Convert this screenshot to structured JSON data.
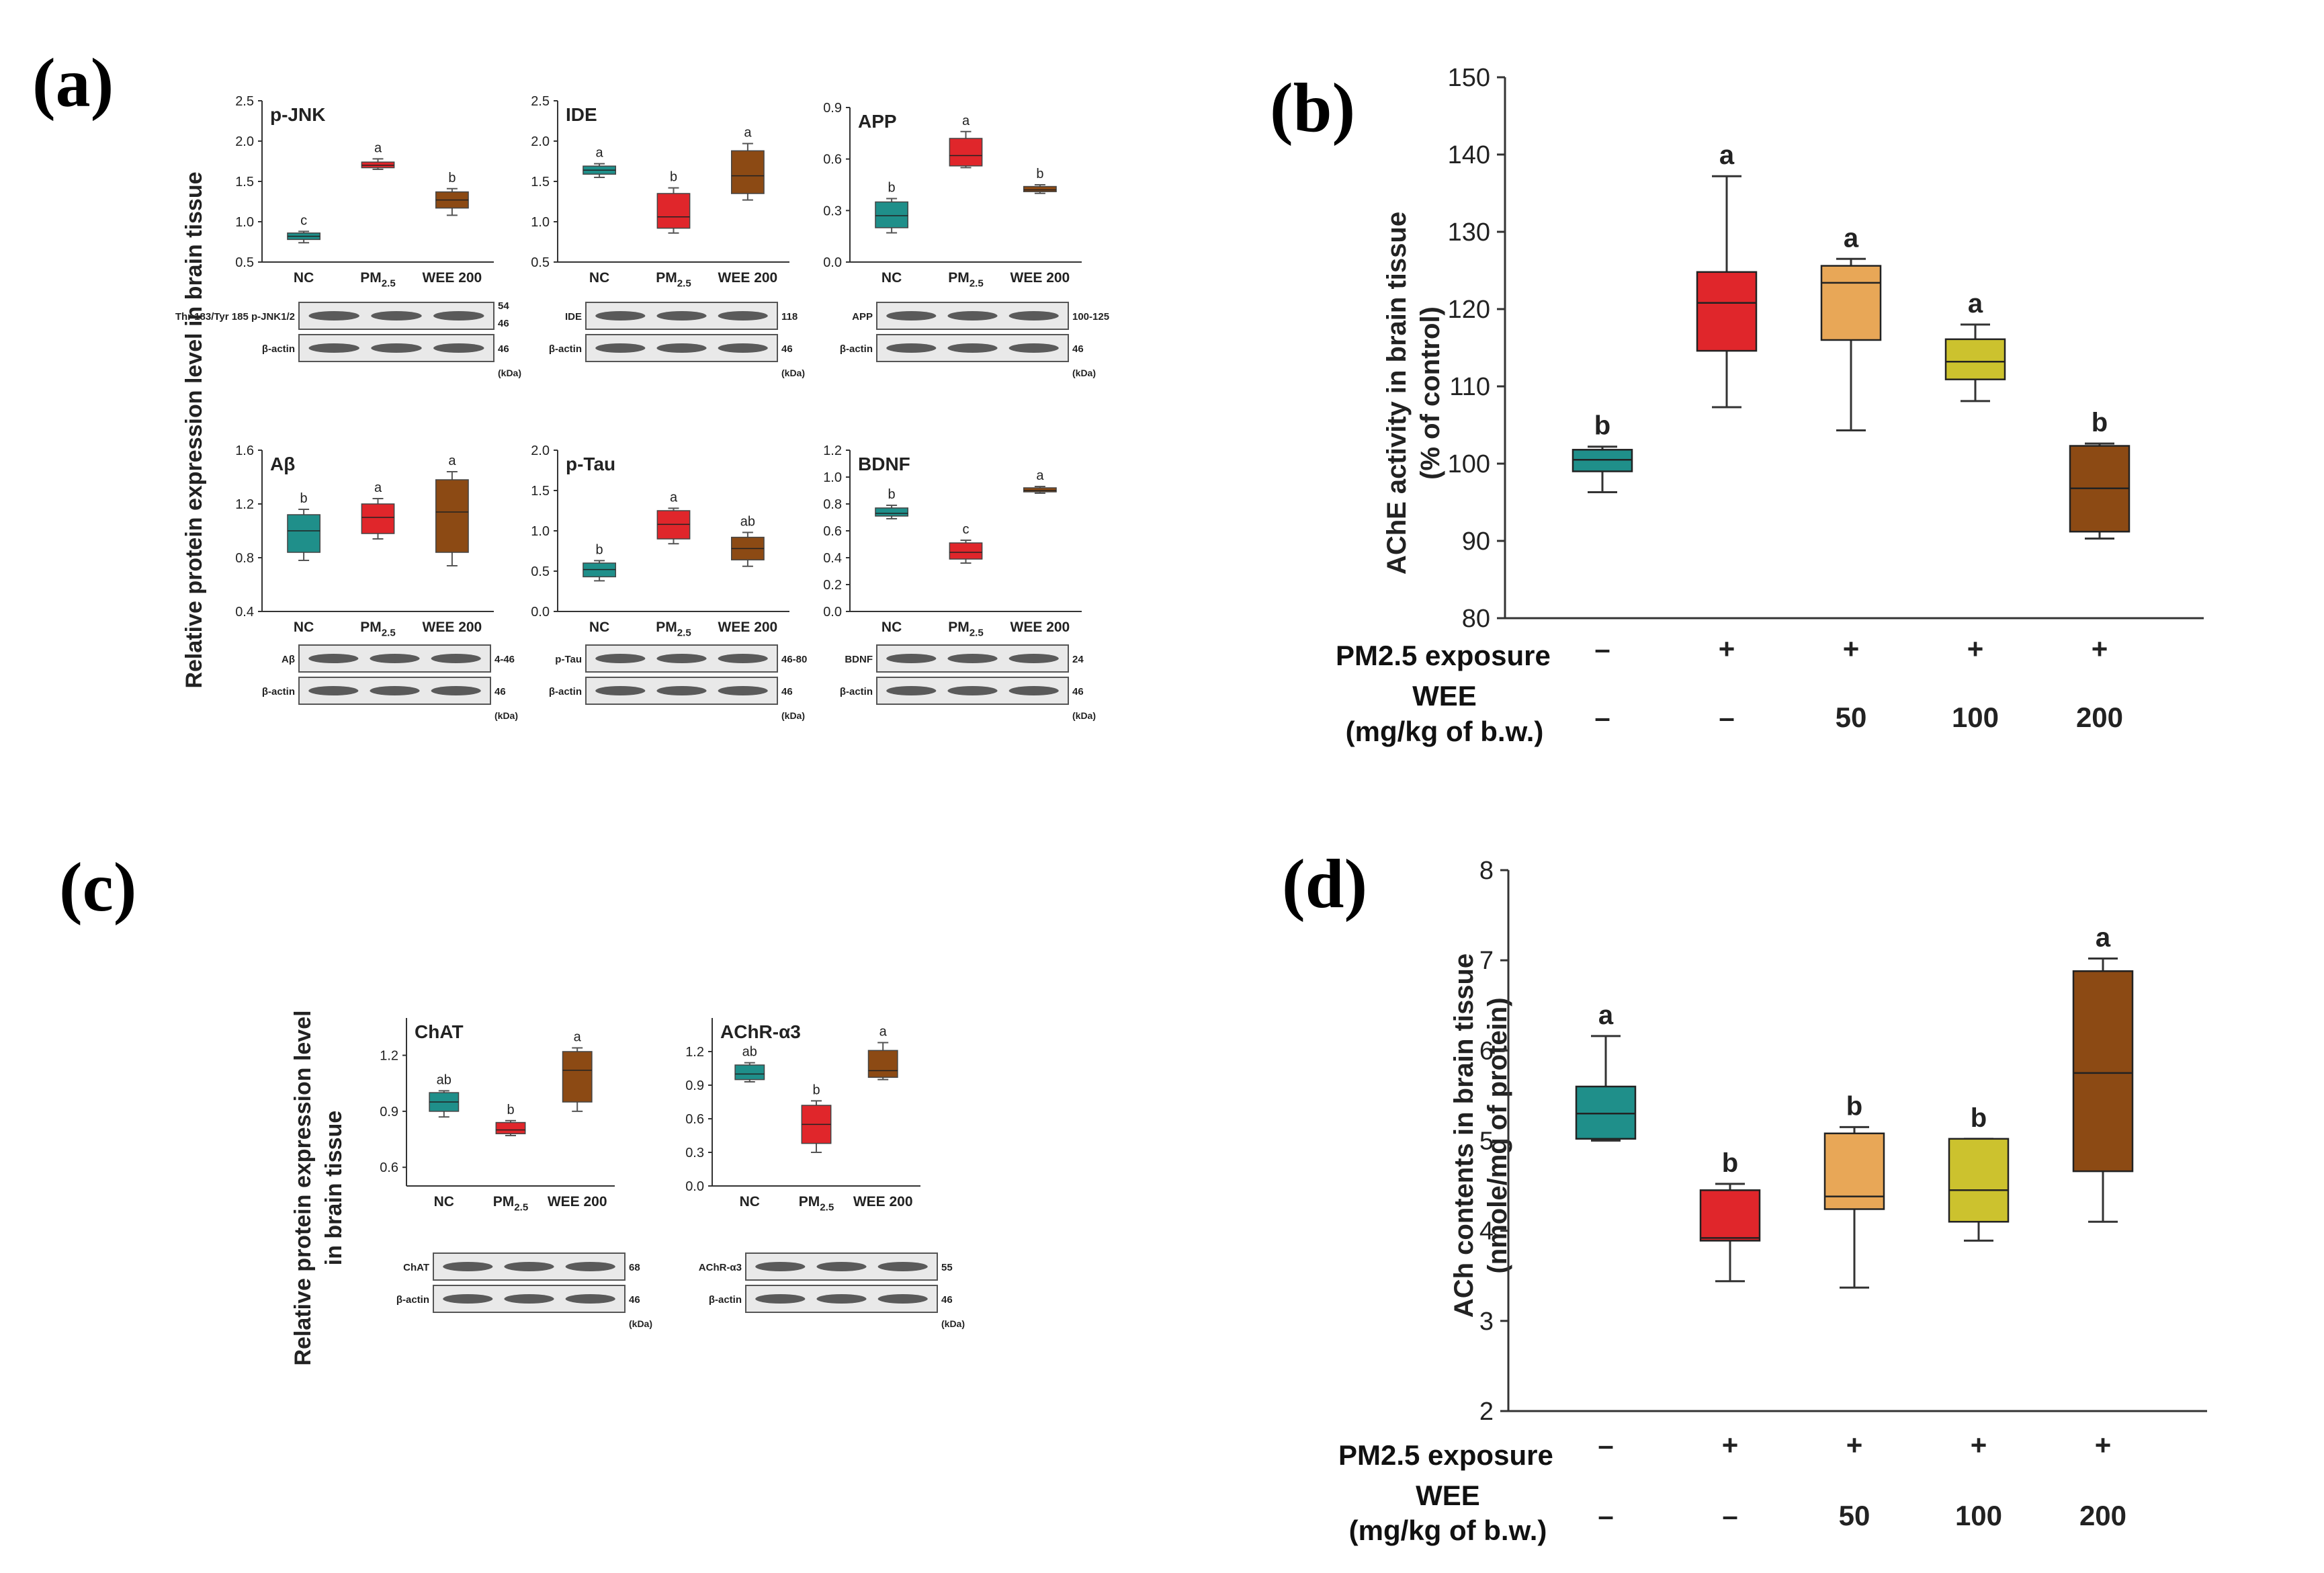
{
  "panel_labels": {
    "a": "(a)",
    "b": "(b)",
    "c": "(c)",
    "d": "(d)"
  },
  "panel_a_ylabel": "Relative protein expression level in brain tissue",
  "panel_c_ylabel_1": "Relative protein expression level",
  "panel_c_ylabel_2": "in brain tissue",
  "group_labels": [
    "NC",
    "PM2.5",
    "WEE 200"
  ],
  "colors": {
    "teal": "#1f8f8a",
    "red": "#e0262b",
    "light_orange": "#e8a757",
    "yellow": "#ccc22e",
    "brown": "#8c4a14",
    "blot_bg": "#e9e9e9",
    "band": "#2a2a2a"
  },
  "chart_data": [
    {
      "type": "boxplot",
      "title": "p-JNK",
      "panel": "a",
      "ylim": [
        0.5,
        2.5
      ],
      "yticks": [
        "0.5",
        "1.0",
        "1.5",
        "2.0",
        "2.5"
      ],
      "categories": [
        "NC",
        "PM2.5",
        "WEE 200"
      ],
      "boxes": [
        {
          "min": 0.74,
          "q1": 0.78,
          "median": 0.82,
          "q3": 0.86,
          "max": 0.88,
          "label": "c",
          "color": "teal"
        },
        {
          "min": 1.65,
          "q1": 1.67,
          "median": 1.7,
          "q3": 1.74,
          "max": 1.78,
          "label": "a",
          "color": "red"
        },
        {
          "min": 1.08,
          "q1": 1.17,
          "median": 1.27,
          "q3": 1.37,
          "max": 1.41,
          "label": "b",
          "color": "brown"
        }
      ],
      "blot": {
        "rows": [
          "Thr 183/Tyr 185 p-JNK1/2",
          "β-actin"
        ],
        "kda": [
          "54",
          "46",
          "46"
        ],
        "unit": "(kDa)"
      }
    },
    {
      "type": "boxplot",
      "title": "IDE",
      "panel": "a",
      "ylim": [
        0.5,
        2.5
      ],
      "yticks": [
        "0.5",
        "1.0",
        "1.5",
        "2.0",
        "2.5"
      ],
      "categories": [
        "NC",
        "PM2.5",
        "WEE 200"
      ],
      "boxes": [
        {
          "min": 1.55,
          "q1": 1.59,
          "median": 1.64,
          "q3": 1.69,
          "max": 1.72,
          "label": "a",
          "color": "teal"
        },
        {
          "min": 0.86,
          "q1": 0.92,
          "median": 1.06,
          "q3": 1.35,
          "max": 1.42,
          "label": "b",
          "color": "red"
        },
        {
          "min": 1.27,
          "q1": 1.35,
          "median": 1.57,
          "q3": 1.88,
          "max": 1.97,
          "label": "a",
          "color": "brown"
        }
      ],
      "blot": {
        "rows": [
          "IDE",
          "β-actin"
        ],
        "kda": [
          "118",
          "46"
        ],
        "unit": "(kDa)"
      }
    },
    {
      "type": "boxplot",
      "title": "APP",
      "panel": "a",
      "ylim": [
        0.0,
        0.9
      ],
      "yticks": [
        "0.0",
        "0.3",
        "0.6",
        "0.9"
      ],
      "categories": [
        "NC",
        "PM2.5",
        "WEE 200"
      ],
      "boxes": [
        {
          "min": 0.17,
          "q1": 0.2,
          "median": 0.27,
          "q3": 0.35,
          "max": 0.37,
          "label": "b",
          "color": "teal"
        },
        {
          "min": 0.55,
          "q1": 0.56,
          "median": 0.62,
          "q3": 0.72,
          "max": 0.76,
          "label": "a",
          "color": "red"
        },
        {
          "min": 0.4,
          "q1": 0.41,
          "median": 0.42,
          "q3": 0.44,
          "max": 0.45,
          "label": "b",
          "color": "brown"
        }
      ],
      "blot": {
        "rows": [
          "APP",
          "β-actin"
        ],
        "kda": [
          "100-125",
          "46"
        ],
        "unit": "(kDa)"
      }
    },
    {
      "type": "boxplot",
      "title": "Aβ",
      "panel": "a",
      "ylim": [
        0.4,
        1.6
      ],
      "yticks": [
        "0.4",
        "0.8",
        "1.2",
        "1.6"
      ],
      "categories": [
        "NC",
        "PM2.5",
        "WEE 200"
      ],
      "boxes": [
        {
          "min": 0.78,
          "q1": 0.84,
          "median": 1.0,
          "q3": 1.12,
          "max": 1.16,
          "label": "b",
          "color": "teal"
        },
        {
          "min": 0.94,
          "q1": 0.98,
          "median": 1.1,
          "q3": 1.2,
          "max": 1.24,
          "label": "a",
          "color": "red"
        },
        {
          "min": 0.74,
          "q1": 0.84,
          "median": 1.14,
          "q3": 1.38,
          "max": 1.44,
          "label": "a",
          "color": "brown"
        }
      ],
      "blot": {
        "rows": [
          "Aβ",
          "β-actin"
        ],
        "kda": [
          "4-46",
          "46"
        ],
        "unit": "(kDa)"
      }
    },
    {
      "type": "boxplot",
      "title": "p-Tau",
      "panel": "a",
      "ylim": [
        0.0,
        2.0
      ],
      "yticks": [
        "0.0",
        "0.5",
        "1.0",
        "1.5",
        "2.0"
      ],
      "categories": [
        "NC",
        "PM2.5",
        "WEE 200"
      ],
      "boxes": [
        {
          "min": 0.38,
          "q1": 0.43,
          "median": 0.52,
          "q3": 0.6,
          "max": 0.63,
          "label": "b",
          "color": "teal"
        },
        {
          "min": 0.84,
          "q1": 0.9,
          "median": 1.08,
          "q3": 1.25,
          "max": 1.28,
          "label": "a",
          "color": "red"
        },
        {
          "min": 0.56,
          "q1": 0.64,
          "median": 0.78,
          "q3": 0.92,
          "max": 0.98,
          "label": "ab",
          "color": "brown"
        }
      ],
      "blot": {
        "rows": [
          "p-Tau",
          "β-actin"
        ],
        "kda": [
          "46-80",
          "46"
        ],
        "unit": "(kDa)"
      }
    },
    {
      "type": "boxplot",
      "title": "BDNF",
      "panel": "a",
      "ylim": [
        0.0,
        1.2
      ],
      "yticks": [
        "0.0",
        "0.2",
        "0.4",
        "0.6",
        "0.8",
        "1.0",
        "1.2"
      ],
      "categories": [
        "NC",
        "PM2.5",
        "WEE 200"
      ],
      "boxes": [
        {
          "min": 0.69,
          "q1": 0.71,
          "median": 0.73,
          "q3": 0.77,
          "max": 0.79,
          "label": "b",
          "color": "teal"
        },
        {
          "min": 0.36,
          "q1": 0.39,
          "median": 0.44,
          "q3": 0.51,
          "max": 0.53,
          "label": "c",
          "color": "red"
        },
        {
          "min": 0.88,
          "q1": 0.89,
          "median": 0.9,
          "q3": 0.92,
          "max": 0.93,
          "label": "a",
          "color": "brown"
        }
      ],
      "blot": {
        "rows": [
          "BDNF",
          "β-actin"
        ],
        "kda": [
          "24",
          "46"
        ],
        "unit": "(kDa)"
      }
    },
    {
      "type": "boxplot",
      "title": "ChAT",
      "panel": "c",
      "ylim": [
        0.5,
        1.4
      ],
      "yticks": [
        "0.6",
        "0.9",
        "1.2"
      ],
      "categories": [
        "NC",
        "PM2.5",
        "WEE 200"
      ],
      "boxes": [
        {
          "min": 0.87,
          "q1": 0.9,
          "median": 0.95,
          "q3": 1.0,
          "max": 1.01,
          "label": "ab",
          "color": "teal"
        },
        {
          "min": 0.77,
          "q1": 0.78,
          "median": 0.8,
          "q3": 0.84,
          "max": 0.85,
          "label": "b",
          "color": "red"
        },
        {
          "min": 0.9,
          "q1": 0.95,
          "median": 1.12,
          "q3": 1.22,
          "max": 1.24,
          "label": "a",
          "color": "brown"
        }
      ],
      "blot": {
        "rows": [
          "ChAT",
          "β-actin"
        ],
        "kda": [
          "68",
          "46"
        ],
        "unit": "(kDa)"
      }
    },
    {
      "type": "boxplot",
      "title": "AChR-α3",
      "panel": "c",
      "ylim": [
        0.0,
        1.5
      ],
      "yticks": [
        "0.0",
        "0.3",
        "0.6",
        "0.9",
        "1.2"
      ],
      "categories": [
        "NC",
        "PM2.5",
        "WEE 200"
      ],
      "boxes": [
        {
          "min": 0.93,
          "q1": 0.95,
          "median": 1.0,
          "q3": 1.08,
          "max": 1.1,
          "label": "ab",
          "color": "teal"
        },
        {
          "min": 0.3,
          "q1": 0.38,
          "median": 0.55,
          "q3": 0.72,
          "max": 0.76,
          "label": "b",
          "color": "red"
        },
        {
          "min": 0.95,
          "q1": 0.97,
          "median": 1.03,
          "q3": 1.21,
          "max": 1.28,
          "label": "a",
          "color": "brown"
        }
      ],
      "blot": {
        "rows": [
          "AChR-α3",
          "β-actin"
        ],
        "kda": [
          "55",
          "46"
        ],
        "unit": "(kDa)"
      }
    },
    {
      "type": "boxplot",
      "panel": "b",
      "ylabel_1": "AChE activity in brain tissue",
      "ylabel_2": "(% of control)",
      "ylim": [
        80,
        150
      ],
      "yticks": [
        "80",
        "90",
        "100",
        "110",
        "120",
        "130",
        "140",
        "150"
      ],
      "row1_label": "PM2.5 exposure",
      "row2_label_1": "WEE",
      "row2_label_2": "(mg/kg of b.w.)",
      "row1": [
        "–",
        "+",
        "+",
        "+",
        "+"
      ],
      "row2": [
        "–",
        "–",
        "50",
        "100",
        "200"
      ],
      "boxes": [
        {
          "min": 96.3,
          "q1": 99.0,
          "median": 100.5,
          "q3": 101.8,
          "max": 102.2,
          "label": "b",
          "color": "teal"
        },
        {
          "min": 107.3,
          "q1": 114.6,
          "median": 120.8,
          "q3": 124.8,
          "max": 137.2,
          "label": "a",
          "color": "red"
        },
        {
          "min": 104.3,
          "q1": 116.0,
          "median": 123.4,
          "q3": 125.6,
          "max": 126.5,
          "label": "a",
          "color": "light_orange"
        },
        {
          "min": 108.1,
          "q1": 110.9,
          "median": 113.2,
          "q3": 116.1,
          "max": 118.0,
          "label": "a",
          "color": "yellow"
        },
        {
          "min": 90.3,
          "q1": 91.2,
          "median": 96.8,
          "q3": 102.3,
          "max": 102.6,
          "label": "b",
          "color": "brown"
        }
      ]
    },
    {
      "type": "boxplot",
      "panel": "d",
      "ylabel_1": "ACh contents in brain tissue",
      "ylabel_2": "(nmole/mg of protein)",
      "ylim": [
        2,
        8
      ],
      "yticks": [
        "2",
        "3",
        "4",
        "5",
        "6",
        "7",
        "8"
      ],
      "row1_label": "PM2.5 exposure",
      "row2_label_1": "WEE",
      "row2_label_2": "(mg/kg of b.w.)",
      "row1": [
        "–",
        "+",
        "+",
        "+",
        "+"
      ],
      "row2": [
        "–",
        "–",
        "50",
        "100",
        "200"
      ],
      "boxes": [
        {
          "min": 5.0,
          "q1": 5.02,
          "median": 5.3,
          "q3": 5.6,
          "max": 6.16,
          "label": "a",
          "color": "teal"
        },
        {
          "min": 3.44,
          "q1": 3.89,
          "median": 3.92,
          "q3": 4.45,
          "max": 4.52,
          "label": "b",
          "color": "red"
        },
        {
          "min": 3.37,
          "q1": 4.24,
          "median": 4.38,
          "q3": 5.08,
          "max": 5.15,
          "label": "b",
          "color": "light_orange"
        },
        {
          "min": 3.89,
          "q1": 4.1,
          "median": 4.45,
          "q3": 5.02,
          "max": 5.02,
          "label": "b",
          "color": "yellow"
        },
        {
          "min": 4.1,
          "q1": 4.66,
          "median": 5.75,
          "q3": 6.88,
          "max": 7.02,
          "label": "a",
          "color": "brown"
        }
      ]
    }
  ]
}
